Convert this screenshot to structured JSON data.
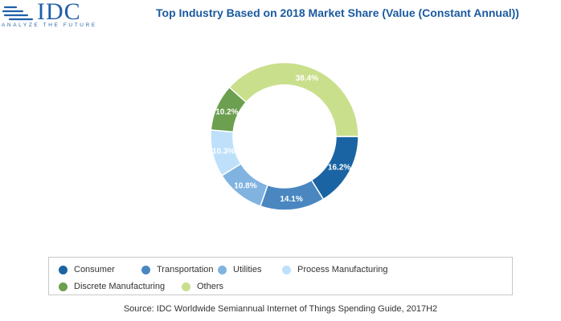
{
  "logo": {
    "text": "IDC",
    "tagline": "ANALYZE THE FUTURE"
  },
  "colors": {
    "Consumer": "#1b64a3",
    "Transportation": "#4a87c1",
    "Utilities": "#80b3e0",
    "Process Manufacturing": "#bee0fa",
    "Discrete Manufacturing": "#6c9f4f",
    "Others": "#cadf8c"
  },
  "chart_data": {
    "type": "pie",
    "variant": "donut",
    "title": "Top Industry Based on 2018 Market Share (Value (Constant Annual))",
    "categories": [
      "Consumer",
      "Transportation",
      "Utilities",
      "Process Manufacturing",
      "Discrete Manufacturing",
      "Others"
    ],
    "values": [
      16.2,
      14.1,
      10.8,
      10.3,
      10.2,
      38.4
    ],
    "value_labels": [
      "16.2%",
      "14.1%",
      "10.8%",
      "10.3%",
      "10.2%",
      "38.4%"
    ],
    "legend_position": "bottom",
    "source": "Source: IDC Worldwide Semiannual Internet of Things Spending Guide, 2017H2"
  }
}
